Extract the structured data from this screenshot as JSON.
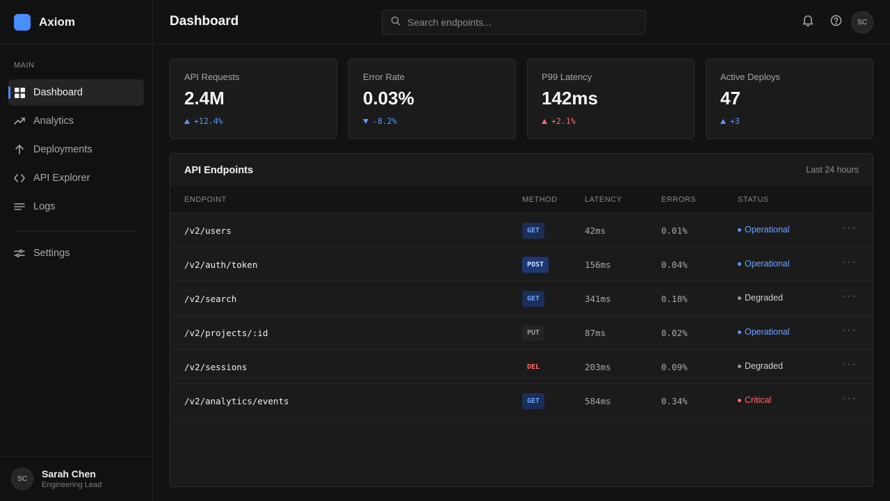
{
  "app": {
    "name": "Axiom"
  },
  "sidebar": {
    "section_label": "MAIN",
    "items": [
      {
        "label": "Dashboard",
        "icon": "grid-icon",
        "active": true
      },
      {
        "label": "Analytics",
        "icon": "trending-up-icon"
      },
      {
        "label": "Deployments",
        "icon": "arrow-up-icon"
      },
      {
        "label": "API Explorer",
        "icon": "code-icon"
      },
      {
        "label": "Logs",
        "icon": "lines-icon"
      }
    ],
    "settings_label": "Settings",
    "user": {
      "initials": "SC",
      "name": "Sarah Chen",
      "role": "Engineering Lead"
    }
  },
  "header": {
    "title": "Dashboard",
    "search_placeholder": "Search endpoints...",
    "avatar_initials": "SC"
  },
  "stats": [
    {
      "label": "API Requests",
      "value": "2.4M",
      "delta": "+12.4%",
      "direction": "up",
      "color": "#5b9bff"
    },
    {
      "label": "Error Rate",
      "value": "0.03%",
      "delta": "-8.2%",
      "direction": "down",
      "color": "#5b9bff"
    },
    {
      "label": "P99 Latency",
      "value": "142ms",
      "delta": "+2.1%",
      "direction": "up",
      "color": "#ff6b6b"
    },
    {
      "label": "Active Deploys",
      "value": "47",
      "delta": "+3",
      "direction": "up",
      "color": "#5b9bff"
    }
  ],
  "endpoints": {
    "title": "API Endpoints",
    "range": "Last 24 hours",
    "columns": [
      "ENDPOINT",
      "METHOD",
      "LATENCY",
      "ERRORS",
      "STATUS"
    ],
    "rows": [
      {
        "endpoint": "/v2/users",
        "method": "GET",
        "latency": "42ms",
        "errors": "0.01%",
        "status": "Operational"
      },
      {
        "endpoint": "/v2/auth/token",
        "method": "POST",
        "latency": "156ms",
        "errors": "0.04%",
        "status": "Operational"
      },
      {
        "endpoint": "/v2/search",
        "method": "GET",
        "latency": "341ms",
        "errors": "0.18%",
        "status": "Degraded"
      },
      {
        "endpoint": "/v2/projects/:id",
        "method": "PUT",
        "latency": "87ms",
        "errors": "0.02%",
        "status": "Operational"
      },
      {
        "endpoint": "/v2/sessions",
        "method": "DEL",
        "latency": "203ms",
        "errors": "0.09%",
        "status": "Degraded"
      },
      {
        "endpoint": "/v2/analytics/events",
        "method": "GET",
        "latency": "584ms",
        "errors": "0.34%",
        "status": "Critical"
      }
    ],
    "more_label": "···"
  },
  "status_colors": {
    "Operational": "#5b9bff",
    "Degraded": "#9a9a9a",
    "Critical": "#ff6b6b"
  },
  "status_text_colors": {
    "Operational": "#6ea5ff",
    "Degraded": "#d0d0d0",
    "Critical": "#ff6b6b"
  }
}
